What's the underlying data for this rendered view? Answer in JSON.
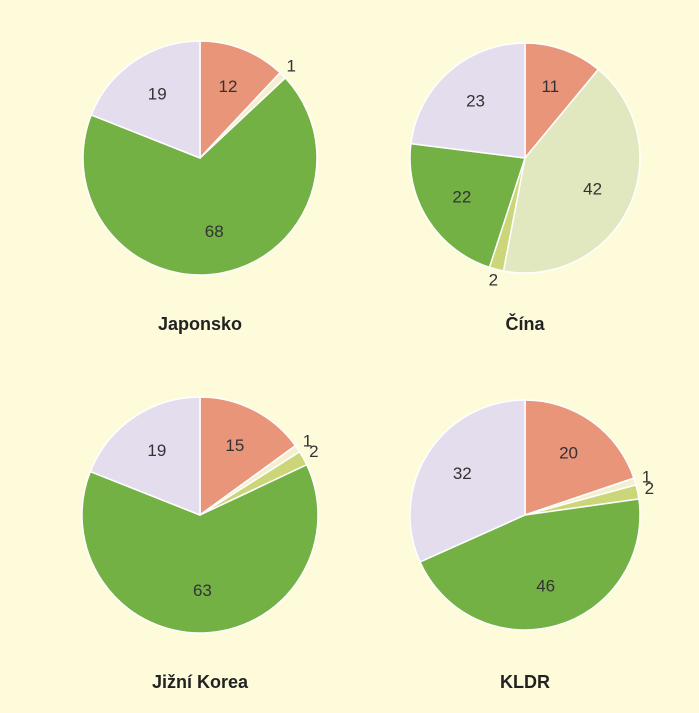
{
  "chart_data": [
    {
      "type": "pie",
      "title": "Japonsko",
      "values": [
        12,
        1,
        68,
        19
      ],
      "colors": [
        "#e8957a",
        "#f3efcf",
        "#74b145",
        "#e4ddee"
      ]
    },
    {
      "type": "pie",
      "title": "Čína",
      "values": [
        11,
        42,
        2,
        22,
        23
      ],
      "colors": [
        "#e8957a",
        "#e1e7bf",
        "#cbd678",
        "#74b145",
        "#e4ddee"
      ]
    },
    {
      "type": "pie",
      "title": "Jižní Korea",
      "values": [
        15,
        1,
        2,
        63,
        19
      ],
      "colors": [
        "#e8957a",
        "#f3efcf",
        "#cbd678",
        "#74b145",
        "#e4ddee"
      ]
    },
    {
      "type": "pie",
      "title": "KLDR",
      "values": [
        20,
        1,
        2,
        46,
        32
      ],
      "colors": [
        "#e8957a",
        "#f3efcf",
        "#cbd678",
        "#74b145",
        "#e4ddee"
      ]
    }
  ]
}
